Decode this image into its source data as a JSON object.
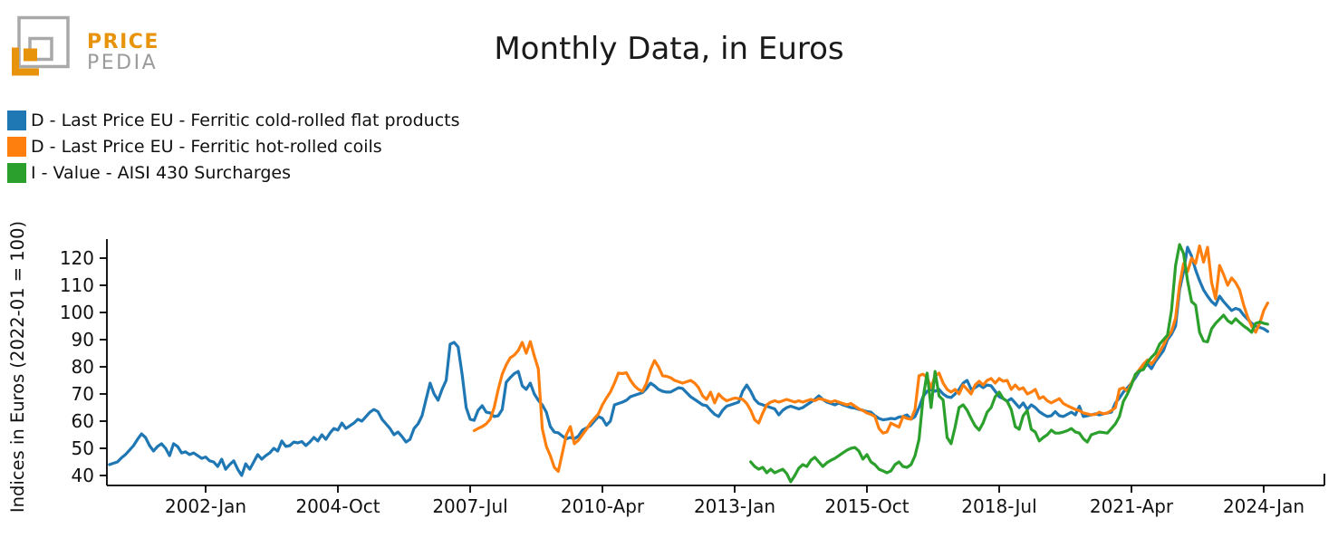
{
  "logo": {
    "line1": "PRICE",
    "line2": "PEDIA",
    "orange": "#E8930C",
    "gray": "#9B9B9B"
  },
  "title": "Monthly Data, in Euros",
  "legend": [
    {
      "label": "D - Last Price EU - Ferritic cold-rolled flat products",
      "color": "#1f77b4"
    },
    {
      "label": "D - Last Price EU - Ferritic hot-rolled coils",
      "color": "#ff7f0e"
    },
    {
      "label": "I - Value - AISI 430 Surcharges",
      "color": "#2ca02c"
    }
  ],
  "chart_data": {
    "type": "line",
    "title": "Monthly Data, in Euros",
    "xlabel": "",
    "ylabel": "Indices in Euros (2022-01 = 100)",
    "grid": false,
    "legend_position": "upper-left-outside",
    "ylim": [
      36.5,
      126.5
    ],
    "y_ticks": [
      40,
      50,
      60,
      70,
      80,
      90,
      100,
      110,
      120
    ],
    "x_ticks": [
      {
        "label": "2002-Jan",
        "date": "2002-01"
      },
      {
        "label": "2004-Oct",
        "date": "2004-10"
      },
      {
        "label": "2007-Jul",
        "date": "2007-07"
      },
      {
        "label": "2010-Apr",
        "date": "2010-04"
      },
      {
        "label": "2013-Jan",
        "date": "2013-01"
      },
      {
        "label": "2015-Oct",
        "date": "2015-10"
      },
      {
        "label": "2018-Jul",
        "date": "2018-07"
      },
      {
        "label": "2021-Apr",
        "date": "2021-04"
      },
      {
        "label": "2024-Jan",
        "date": "2024-01"
      }
    ],
    "x_range": [
      "1999-12",
      "2025-03"
    ],
    "frequency": "monthly",
    "series": [
      {
        "name": "D - Last Price EU - Ferritic cold-rolled flat products",
        "color": "#1f77b4",
        "start": "2000-01",
        "values": [
          44,
          44.5,
          45,
          46.5,
          47.7,
          49.3,
          51,
          53.3,
          55.3,
          54,
          51,
          49,
          50.7,
          51.7,
          50,
          47.3,
          51.7,
          50.7,
          48.3,
          48.7,
          47.7,
          48.3,
          47.3,
          46.3,
          46.8,
          45.4,
          45,
          43.3,
          46,
          42.3,
          44,
          45.4,
          42.3,
          40,
          44.3,
          42.3,
          45,
          47.7,
          46,
          47.3,
          48.3,
          50,
          49,
          52.7,
          50.7,
          51,
          52.3,
          52,
          52.5,
          51,
          52.3,
          54,
          52.7,
          55,
          53.3,
          55.6,
          57.3,
          56.7,
          59.3,
          57.3,
          58.3,
          59.3,
          60.7,
          60,
          61.7,
          63.3,
          64.3,
          63.5,
          60.7,
          59,
          57.3,
          55,
          56,
          54.3,
          52.3,
          53.3,
          57.3,
          59,
          62,
          68,
          74,
          70,
          67.7,
          71.7,
          75,
          88.3,
          89,
          87.3,
          77.3,
          65,
          60.7,
          60.3,
          64,
          65.7,
          63.3,
          63,
          61.7,
          62,
          64.3,
          74.3,
          76,
          77.5,
          78.3,
          73,
          71.7,
          74,
          70,
          67.7,
          66,
          63.3,
          58,
          56,
          55.7,
          54.5,
          53.5,
          54,
          53.5,
          54.5,
          56.7,
          57.5,
          58.3,
          60,
          61.7,
          61,
          58.5,
          60,
          66,
          66.5,
          67,
          67.7,
          69,
          69.5,
          70,
          70.5,
          72,
          74,
          73,
          71.7,
          71,
          70.7,
          70.7,
          71.5,
          72.3,
          72,
          70.5,
          69,
          68,
          67,
          66,
          65.7,
          64,
          62.5,
          61.7,
          64,
          65.5,
          66,
          66.5,
          67,
          71,
          73.3,
          71,
          68,
          66.5,
          66,
          65.5,
          65,
          64.5,
          62.3,
          64,
          65,
          65.5,
          65,
          64.5,
          65,
          66,
          67,
          68,
          69.3,
          68,
          67,
          66.5,
          66,
          66.7,
          66,
          65.5,
          65,
          64.8,
          64.3,
          64,
          63.5,
          63.3,
          62,
          61,
          60.5,
          60.7,
          61,
          60.8,
          61.5,
          61.7,
          62.3,
          60.7,
          61.7,
          65,
          69,
          71,
          71.7,
          71,
          71.7,
          70,
          69,
          68.7,
          70,
          71.7,
          74,
          75,
          71.7,
          72.3,
          73.3,
          72.3,
          73.3,
          73,
          71,
          69,
          68.3,
          67.3,
          68.3,
          66.7,
          65,
          66.7,
          64.3,
          66,
          65,
          63.5,
          62.5,
          61.7,
          62,
          63.5,
          62,
          61.7,
          62.5,
          63.3,
          62.3,
          65.5,
          61.7,
          62,
          62.3,
          62.7,
          62.3,
          62.7,
          63,
          63.3,
          66.7,
          68.5,
          70.7,
          72.3,
          74,
          76,
          78.3,
          79.5,
          81,
          79.3,
          82,
          84,
          86,
          90,
          92,
          95,
          108.3,
          115,
          124,
          120.7,
          115.7,
          111.7,
          108.3,
          106,
          104,
          102.7,
          106,
          104,
          102.3,
          100.7,
          101.5,
          101,
          99,
          97.5,
          96,
          95,
          94.5,
          94,
          93
        ]
      },
      {
        "name": "D - Last Price EU - Ferritic hot-rolled coils",
        "color": "#ff7f0e",
        "start": "2007-08",
        "values": [
          56.5,
          57.3,
          58,
          59,
          60.7,
          65,
          71.7,
          77.3,
          80.7,
          83.3,
          84.3,
          86,
          89,
          85,
          89.3,
          84,
          79.3,
          57.3,
          50.7,
          47.3,
          43,
          41.5,
          48.3,
          55,
          58,
          51.7,
          53,
          55,
          57,
          59.3,
          61,
          62.7,
          66,
          68.5,
          70.7,
          74,
          77.7,
          77.5,
          77.8,
          75,
          73,
          71.7,
          71,
          74,
          79,
          82.3,
          80,
          76.7,
          76.5,
          76,
          75,
          74.5,
          74,
          74.5,
          75,
          74,
          72.3,
          69.3,
          68,
          70.7,
          66.7,
          70,
          68.5,
          67.5,
          68,
          68.5,
          68.3,
          68,
          66.5,
          64,
          60.5,
          59.3,
          63,
          66,
          67,
          67.5,
          67,
          67.5,
          68,
          67.5,
          67,
          67.5,
          67,
          67.5,
          68,
          67.5,
          68.3,
          68,
          67.5,
          67,
          67.5,
          67,
          66.5,
          66,
          66.5,
          65.5,
          64.5,
          63.9,
          63,
          62.5,
          61.7,
          57.3,
          55.6,
          56,
          59.3,
          58.5,
          57.8,
          61.7,
          61,
          60.7,
          64.3,
          76.7,
          77.3,
          76,
          72.3,
          76.7,
          77.7,
          74,
          71.7,
          70.7,
          71.7,
          70,
          73.3,
          71.7,
          70,
          73.3,
          74.7,
          73.3,
          75,
          75.7,
          74,
          75.7,
          74.7,
          75,
          71.7,
          73.3,
          71.7,
          72.3,
          70,
          70.7,
          71.7,
          68.3,
          69,
          67.5,
          66.7,
          67.5,
          68.3,
          66.5,
          65.7,
          65,
          64.3,
          63.9,
          63,
          62.7,
          62.3,
          62.5,
          63.3,
          62.7,
          63,
          63.9,
          65,
          71.7,
          72.3,
          71,
          74,
          77,
          79,
          81,
          82.5,
          81,
          83,
          85.5,
          88,
          91,
          93,
          98,
          110,
          118,
          115,
          120,
          118,
          124.5,
          118.5,
          124,
          111,
          105,
          117.3,
          114,
          110,
          112.7,
          111,
          108.3,
          102.7,
          98.3,
          95,
          92.7,
          96,
          100.7,
          103.5
        ]
      },
      {
        "name": "I - Value - AISI 430 Surcharges",
        "color": "#2ca02c",
        "start": "2013-05",
        "values": [
          45,
          43.3,
          42.3,
          43,
          41,
          42.3,
          41,
          41.7,
          42.3,
          40.7,
          37.7,
          40,
          42.7,
          44,
          43.3,
          45.6,
          46.7,
          45,
          43.3,
          44.7,
          45.6,
          46.3,
          47.3,
          48.3,
          49.3,
          50,
          50.3,
          49,
          46,
          47.7,
          45,
          44,
          42.3,
          41.7,
          41,
          41.7,
          44,
          45,
          43.3,
          43,
          44,
          47.3,
          53.3,
          68.3,
          77.7,
          65,
          78.3,
          69.3,
          67.8,
          54,
          51.7,
          57.8,
          65,
          66,
          64,
          61,
          58.3,
          56.7,
          59.4,
          63.3,
          65,
          69,
          70.7,
          68.3,
          67.3,
          64.3,
          58,
          57,
          62,
          63.9,
          57,
          56,
          52.7,
          54,
          55,
          56.7,
          55.6,
          55.6,
          56,
          56.5,
          57.3,
          56,
          55.6,
          53.5,
          52.3,
          55,
          55.5,
          56,
          55.8,
          55.6,
          57.3,
          59,
          61.7,
          67.3,
          70,
          73.3,
          77.3,
          78.5,
          79,
          81.7,
          83.5,
          85,
          88.3,
          90,
          91.7,
          100.7,
          117.3,
          125,
          121.7,
          111.7,
          104,
          102.7,
          92.7,
          89.5,
          89.2,
          94,
          96,
          97.5,
          99,
          97,
          96,
          97.7,
          96.3,
          95,
          94,
          92.7,
          96,
          96.5,
          96,
          95.7
        ]
      }
    ]
  }
}
